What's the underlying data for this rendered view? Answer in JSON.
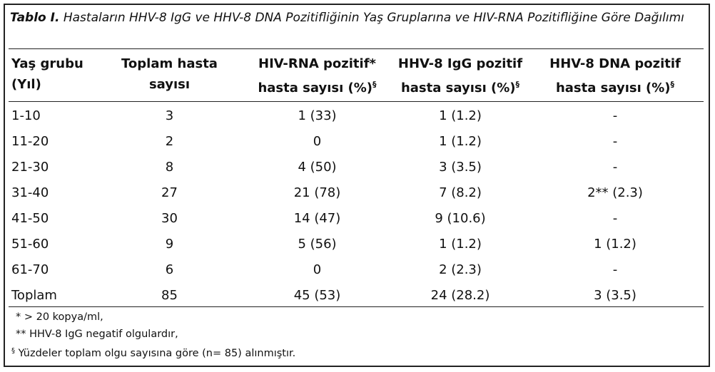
{
  "caption": {
    "lead": "Tablo I.",
    "text": " Hastaların HHV-8 IgG ve HHV-8 DNA Pozitifliğinin Yaş Gruplarına ve HIV-RNA Pozitifliğine Göre Dağılımı"
  },
  "headers": [
    {
      "line1": "Yaş grubu",
      "line2": "(Yıl)",
      "sup": ""
    },
    {
      "line1": "Toplam hasta",
      "line2": "sayısı",
      "sup": ""
    },
    {
      "line1": "HIV-RNA pozitif*",
      "line2": "hasta sayısı (%)",
      "sup": "§"
    },
    {
      "line1": "HHV-8 IgG pozitif",
      "line2": "hasta sayısı (%)",
      "sup": "§"
    },
    {
      "line1": "HHV-8 DNA pozitif",
      "line2": "hasta sayısı (%)",
      "sup": "§"
    }
  ],
  "rows": [
    [
      "1-10",
      "3",
      "1 (33)",
      "1 (1.2)",
      "-"
    ],
    [
      "11-20",
      "2",
      "0",
      "1 (1.2)",
      "-"
    ],
    [
      "21-30",
      "8",
      "4 (50)",
      "3 (3.5)",
      "-"
    ],
    [
      "31-40",
      "27",
      "21 (78)",
      "7 (8.2)",
      "2** (2.3)"
    ],
    [
      "41-50",
      "30",
      "14 (47)",
      "9 (10.6)",
      "-"
    ],
    [
      "51-60",
      "9",
      "5 (56)",
      "1 (1.2)",
      "1 (1.2)"
    ],
    [
      "61-70",
      "6",
      "0",
      "2 (2.3)",
      "-"
    ],
    [
      "Toplam",
      "85",
      "45 (53)",
      "24 (28.2)",
      "3 (3.5)"
    ]
  ],
  "footnotes": [
    {
      "mark": "*",
      "text": "  > 20 kopya/ml,",
      "sup": false
    },
    {
      "mark": "**",
      "text": "  HHV-8 IgG negatif olgulardır,",
      "sup": false
    },
    {
      "mark": "§",
      "text": " Yüzdeler toplam olgu sayısına göre (n= 85) alınmıştır.",
      "sup": true
    }
  ]
}
